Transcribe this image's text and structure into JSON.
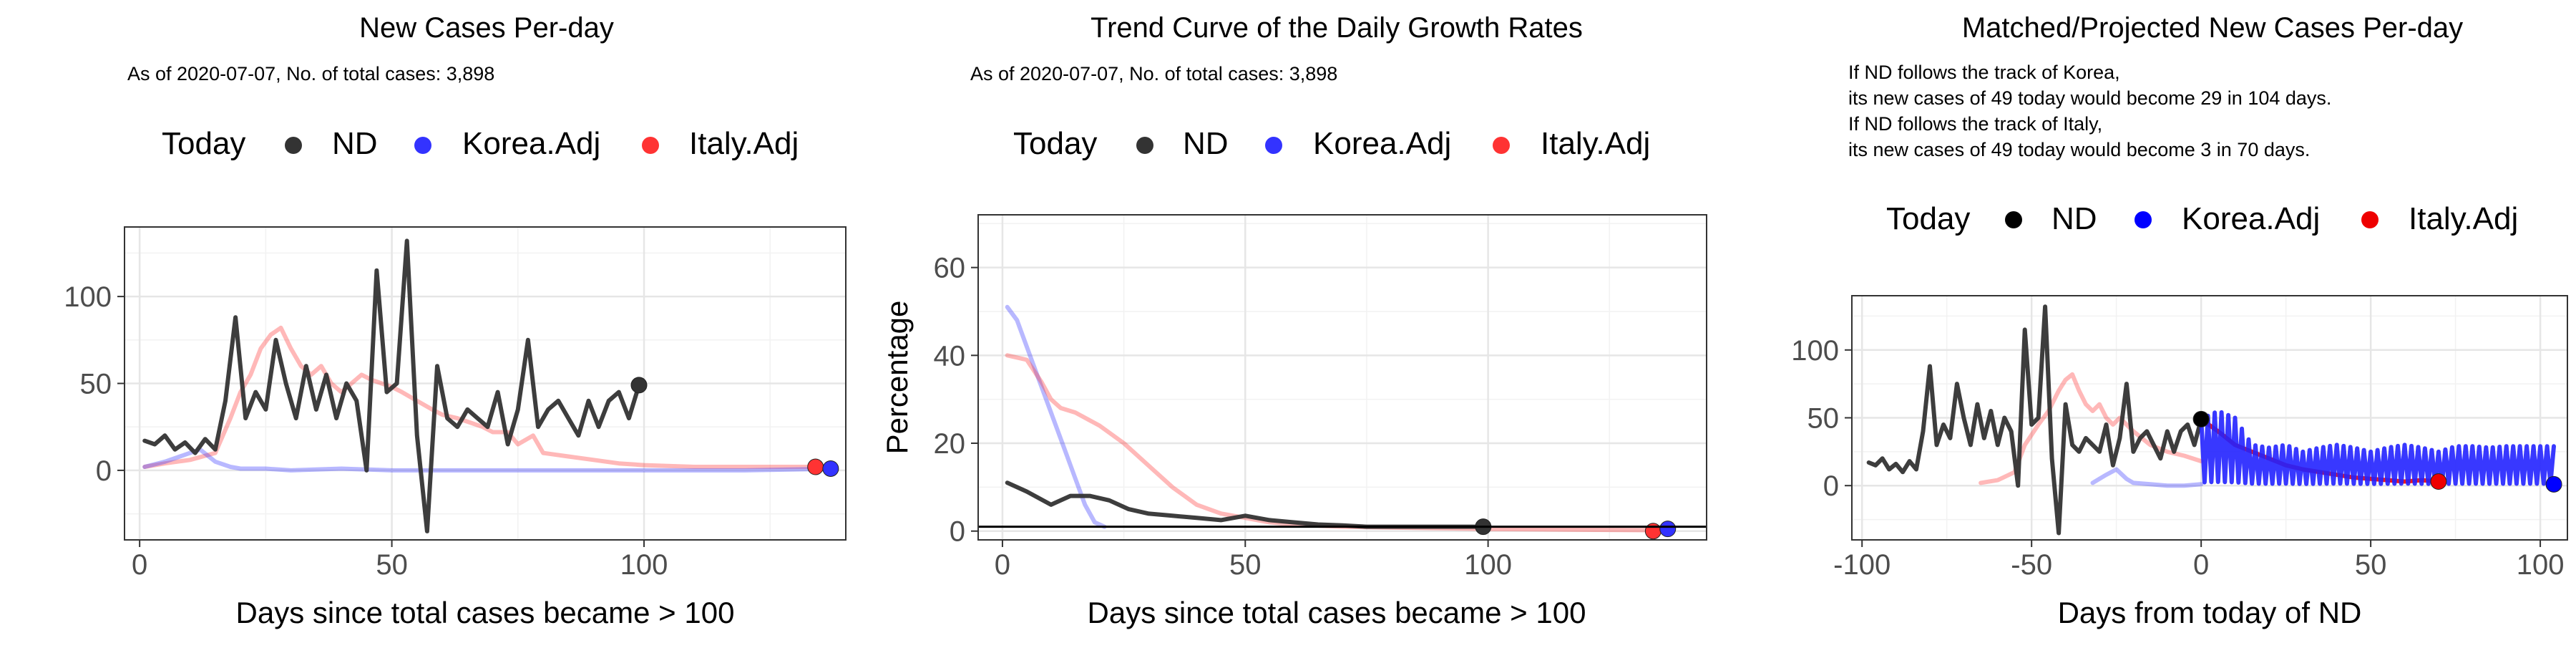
{
  "panels": [
    {
      "title": "New Cases Per-day",
      "subtitle_lines": [
        "As of 2020-07-07, No. of total cases: 3,898"
      ],
      "legend": {
        "title": "Today",
        "entries": [
          {
            "label": "ND",
            "color": "#333333"
          },
          {
            "label": "Korea.Adj",
            "color": "#3333ff"
          },
          {
            "label": "Italy.Adj",
            "color": "#ff3333"
          }
        ]
      }
    },
    {
      "title": "Trend Curve of the Daily Growth Rates",
      "subtitle_lines": [
        "As of 2020-07-07, No. of total cases: 3,898"
      ],
      "legend": {
        "title": "Today",
        "entries": [
          {
            "label": "ND",
            "color": "#333333"
          },
          {
            "label": "Korea.Adj",
            "color": "#3333ff"
          },
          {
            "label": "Italy.Adj",
            "color": "#ff3333"
          }
        ]
      }
    },
    {
      "title": "Matched/Projected New Cases Per-day",
      "subtitle_lines": [
        "If ND follows the track of Korea,",
        "its new cases of 49 today would become 29 in 104 days.",
        "If ND follows the track of Italy,",
        "its new cases of 49 today would become 3 in 70 days."
      ],
      "legend": {
        "title": "Today",
        "entries": [
          {
            "label": "ND",
            "color": "#000000"
          },
          {
            "label": "Korea.Adj",
            "color": "#0000ff"
          },
          {
            "label": "Italy.Adj",
            "color": "#ee0000"
          }
        ]
      }
    }
  ],
  "chart_data": [
    {
      "type": "line",
      "title": "New Cases Per-day",
      "xlabel": "Days since total cases became > 100",
      "ylabel": "",
      "xlim": [
        -3,
        140
      ],
      "ylim": [
        -40,
        140
      ],
      "xticks": [
        0,
        50,
        100
      ],
      "yticks": [
        0,
        50,
        100
      ],
      "grid": true,
      "series": [
        {
          "name": "Italy.Adj",
          "color": "#ff3333",
          "opacity": 0.35,
          "x": [
            1,
            5,
            10,
            15,
            18,
            20,
            22,
            24,
            26,
            28,
            30,
            32,
            34,
            36,
            38,
            40,
            42,
            44,
            46,
            48,
            50,
            52,
            55,
            58,
            60,
            63,
            65,
            68,
            70,
            73,
            75,
            78,
            80,
            85,
            90,
            95,
            100,
            110,
            120,
            130,
            135
          ],
          "y": [
            2,
            4,
            6,
            10,
            30,
            45,
            55,
            70,
            78,
            82,
            70,
            60,
            55,
            60,
            50,
            45,
            50,
            55,
            52,
            50,
            48,
            45,
            40,
            35,
            32,
            30,
            28,
            25,
            22,
            22,
            15,
            20,
            10,
            8,
            6,
            4,
            3,
            2,
            2,
            2,
            2
          ]
        },
        {
          "name": "Korea.Adj",
          "color": "#3333ff",
          "opacity": 0.35,
          "x": [
            1,
            5,
            8,
            10,
            12,
            15,
            18,
            20,
            25,
            30,
            40,
            50,
            60,
            80,
            100,
            120,
            138
          ],
          "y": [
            2,
            5,
            8,
            10,
            12,
            5,
            2,
            1,
            1,
            0,
            1,
            0,
            0,
            0,
            0,
            0,
            1
          ]
        },
        {
          "name": "ND",
          "color": "#333333",
          "opacity": 0.95,
          "x": [
            1,
            3,
            5,
            7,
            9,
            11,
            13,
            15,
            17,
            19,
            21,
            23,
            25,
            27,
            29,
            31,
            33,
            35,
            37,
            39,
            41,
            43,
            45,
            47,
            49,
            51,
            53,
            55,
            57,
            59,
            61,
            63,
            65,
            67,
            69,
            71,
            73,
            75,
            77,
            79,
            81,
            83,
            85,
            87,
            89,
            91,
            93,
            95,
            97,
            99
          ],
          "y": [
            17,
            15,
            20,
            12,
            16,
            10,
            18,
            12,
            40,
            88,
            30,
            45,
            35,
            75,
            50,
            30,
            60,
            35,
            55,
            30,
            50,
            40,
            0,
            115,
            45,
            50,
            132,
            20,
            -35,
            60,
            30,
            25,
            35,
            30,
            25,
            45,
            15,
            35,
            75,
            25,
            35,
            40,
            30,
            20,
            40,
            25,
            40,
            45,
            30,
            49
          ]
        },
        {
          "name": "Today-ND",
          "kind": "point",
          "color": "#333333",
          "x": [
            99
          ],
          "y": [
            49
          ]
        },
        {
          "name": "Today-Italy",
          "kind": "point",
          "color": "#ff3333",
          "x": [
            134
          ],
          "y": [
            2
          ]
        },
        {
          "name": "Today-Korea",
          "kind": "point",
          "color": "#3333ff",
          "x": [
            137
          ],
          "y": [
            1
          ]
        }
      ]
    },
    {
      "type": "line",
      "title": "Trend Curve of the Daily Growth Rates",
      "xlabel": "Days since total cases became > 100",
      "ylabel": "Percentage",
      "xlim": [
        -5,
        145
      ],
      "ylim": [
        -2,
        72
      ],
      "xticks": [
        0,
        50,
        100
      ],
      "yticks": [
        0,
        20,
        40,
        60
      ],
      "grid": true,
      "hline": 1,
      "series": [
        {
          "name": "Korea.Adj",
          "color": "#3333ff",
          "opacity": 0.35,
          "x": [
            1,
            3,
            5,
            7,
            9,
            11,
            13,
            15,
            17,
            19,
            21
          ],
          "y": [
            51,
            48,
            42,
            36,
            30,
            24,
            18,
            12,
            6,
            2,
            1
          ]
        },
        {
          "name": "Italy.Adj",
          "color": "#ff3333",
          "opacity": 0.35,
          "x": [
            1,
            5,
            8,
            10,
            12,
            15,
            20,
            25,
            30,
            35,
            40,
            45,
            50,
            55,
            60,
            70,
            80,
            100,
            120,
            135
          ],
          "y": [
            40,
            39,
            34,
            30,
            28,
            27,
            24,
            20,
            15,
            10,
            6,
            4,
            3,
            2,
            1.5,
            1,
            0.8,
            0.5,
            0.3,
            0.2
          ]
        },
        {
          "name": "ND",
          "color": "#333333",
          "opacity": 0.95,
          "x": [
            1,
            5,
            10,
            14,
            18,
            22,
            26,
            30,
            35,
            40,
            45,
            50,
            55,
            60,
            65,
            70,
            75,
            80,
            85,
            90,
            95,
            99
          ],
          "y": [
            11,
            9,
            6,
            8,
            8,
            7,
            5,
            4,
            3.5,
            3,
            2.5,
            3.5,
            2.5,
            2,
            1.5,
            1.3,
            1,
            1,
            1,
            1,
            1,
            1
          ]
        },
        {
          "name": "Today-ND",
          "kind": "point",
          "color": "#333333",
          "x": [
            99
          ],
          "y": [
            1
          ]
        },
        {
          "name": "Today-Italy",
          "kind": "point",
          "color": "#ff3333",
          "x": [
            134
          ],
          "y": [
            0
          ]
        },
        {
          "name": "Today-Korea",
          "kind": "point",
          "color": "#3333ff",
          "x": [
            137
          ],
          "y": [
            0.5
          ]
        }
      ]
    },
    {
      "type": "line",
      "title": "Matched/Projected New Cases Per-day",
      "xlabel": "Days from today of ND",
      "ylabel": "",
      "xlim": [
        -103,
        108
      ],
      "ylim": [
        -40,
        140
      ],
      "xticks": [
        -100,
        -50,
        0,
        50,
        100
      ],
      "yticks": [
        0,
        50,
        100
      ],
      "grid": true,
      "series": [
        {
          "name": "Italy.Adj",
          "color": "#ff3333",
          "opacity": 0.35,
          "x": [
            -65,
            -60,
            -55,
            -52,
            -48,
            -45,
            -42,
            -40,
            -38,
            -36,
            -34,
            -32,
            -30,
            -28,
            -26,
            -24,
            -22,
            -20,
            -15,
            -10,
            -5,
            0
          ],
          "y": [
            2,
            4,
            10,
            30,
            45,
            55,
            70,
            78,
            82,
            70,
            60,
            55,
            60,
            50,
            45,
            50,
            45,
            40,
            30,
            25,
            22,
            18
          ]
        },
        {
          "name": "Korea.Adj",
          "color": "#3333ff",
          "opacity": 0.35,
          "x": [
            -32,
            -28,
            -25,
            -22,
            -20,
            -15,
            -10,
            -5,
            0
          ],
          "y": [
            2,
            8,
            12,
            5,
            2,
            1,
            0,
            0,
            1
          ]
        },
        {
          "name": "ND",
          "color": "#333333",
          "opacity": 0.95,
          "x": [
            -98,
            -96,
            -94,
            -92,
            -90,
            -88,
            -86,
            -84,
            -82,
            -80,
            -78,
            -76,
            -74,
            -72,
            -70,
            -68,
            -66,
            -64,
            -62,
            -60,
            -58,
            -56,
            -54,
            -52,
            -50,
            -48,
            -46,
            -44,
            -42,
            -40,
            -38,
            -36,
            -34,
            -32,
            -30,
            -28,
            -26,
            -24,
            -22,
            -20,
            -18,
            -16,
            -14,
            -12,
            -10,
            -8,
            -6,
            -4,
            -2,
            0
          ],
          "y": [
            17,
            15,
            20,
            12,
            16,
            10,
            18,
            12,
            40,
            88,
            30,
            45,
            35,
            75,
            50,
            30,
            60,
            35,
            55,
            30,
            50,
            40,
            0,
            115,
            45,
            50,
            132,
            20,
            -35,
            60,
            30,
            25,
            35,
            30,
            25,
            45,
            15,
            35,
            75,
            25,
            35,
            40,
            30,
            20,
            40,
            25,
            40,
            45,
            30,
            49
          ]
        },
        {
          "name": "Italy.Adj projection",
          "color": "#ee0000",
          "opacity": 0.9,
          "x": [
            0,
            5,
            10,
            15,
            20,
            25,
            30,
            35,
            40,
            45,
            50,
            55,
            60,
            65,
            70
          ],
          "y": [
            49,
            40,
            30,
            25,
            20,
            15,
            12,
            10,
            8,
            6,
            5,
            4,
            3,
            4,
            3
          ]
        },
        {
          "name": "Korea.Adj projection",
          "color": "#2222ff",
          "opacity": 0.9,
          "oscillate": true,
          "x": [
            0,
            5,
            10,
            15,
            20,
            25,
            30,
            35,
            40,
            45,
            50,
            55,
            60,
            65,
            70,
            75,
            80,
            85,
            90,
            95,
            100,
            104
          ],
          "y": [
            49,
            55,
            50,
            30,
            28,
            30,
            25,
            28,
            30,
            28,
            25,
            28,
            30,
            28,
            25,
            29,
            29,
            28,
            29,
            29,
            29,
            29
          ]
        },
        {
          "name": "Today-ND",
          "kind": "point",
          "color": "#000000",
          "x": [
            0
          ],
          "y": [
            49
          ]
        },
        {
          "name": "Today-Korea",
          "kind": "point",
          "color": "#0000ff",
          "x": [
            104
          ],
          "y": [
            1
          ]
        },
        {
          "name": "Today-Italy",
          "kind": "point",
          "color": "#ee0000",
          "x": [
            70
          ],
          "y": [
            3
          ]
        }
      ]
    }
  ]
}
